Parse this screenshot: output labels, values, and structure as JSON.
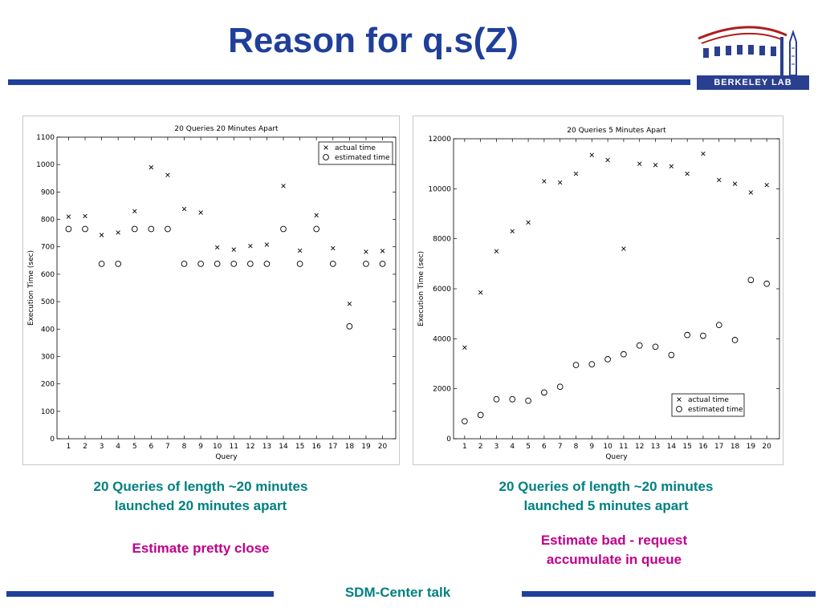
{
  "slide": {
    "title": "Reason for q.s(Z)",
    "footer": "SDM-Center talk",
    "logo_text": "BERKELEY LAB",
    "colors": {
      "title": "#1f3f9a",
      "rule": "#1f3f9a",
      "caption": "#008080",
      "note": "#c0008a"
    }
  },
  "captions": {
    "left_line1": "20 Queries of length ~20 minutes",
    "left_line2": "launched 20 minutes apart",
    "left_note": "Estimate pretty close",
    "right_line1": "20 Queries of length ~20 minutes",
    "right_line2": "launched 5 minutes apart",
    "right_note_line1": "Estimate bad - request",
    "right_note_line2": "accumulate in queue"
  },
  "chart_data": [
    {
      "type": "scatter",
      "title": "20 Queries 20 Minutes Apart",
      "xlabel": "Query",
      "ylabel": "Execution Time (sec)",
      "x": [
        1,
        2,
        3,
        4,
        5,
        6,
        7,
        8,
        9,
        10,
        11,
        12,
        13,
        14,
        15,
        16,
        17,
        18,
        19,
        20
      ],
      "xlim": [
        0.3,
        20.8
      ],
      "ylim": [
        0,
        1100
      ],
      "yticks": [
        0,
        100,
        200,
        300,
        400,
        500,
        600,
        700,
        800,
        900,
        1000,
        1100
      ],
      "grid": false,
      "legend_position": "top-right",
      "series": [
        {
          "name": "actual time",
          "marker": "x",
          "values": [
            810,
            812,
            743,
            752,
            830,
            990,
            962,
            838,
            825,
            698,
            690,
            703,
            708,
            922,
            686,
            815,
            695,
            492,
            682,
            685
          ]
        },
        {
          "name": "estimated time",
          "marker": "o",
          "values": [
            765,
            765,
            638,
            638,
            765,
            765,
            765,
            638,
            638,
            638,
            638,
            638,
            638,
            765,
            638,
            765,
            638,
            410,
            638,
            638
          ]
        }
      ]
    },
    {
      "type": "scatter",
      "title": "20 Queries 5 Minutes Apart",
      "xlabel": "Query",
      "ylabel": "Execution Time (sec)",
      "x": [
        1,
        2,
        3,
        4,
        5,
        6,
        7,
        8,
        9,
        10,
        11,
        12,
        13,
        14,
        15,
        16,
        17,
        18,
        19,
        20
      ],
      "xlim": [
        0.3,
        20.8
      ],
      "ylim": [
        0,
        12000
      ],
      "yticks": [
        0,
        2000,
        4000,
        6000,
        8000,
        10000,
        12000
      ],
      "grid": false,
      "legend_position": "bottom-right",
      "series": [
        {
          "name": "actual time",
          "marker": "x",
          "values": [
            3650,
            5850,
            7500,
            8300,
            8650,
            10300,
            10250,
            10600,
            11350,
            11150,
            7600,
            11000,
            10950,
            10900,
            10600,
            11400,
            10350,
            10200,
            9850,
            10150
          ]
        },
        {
          "name": "estimated time",
          "marker": "o",
          "values": [
            700,
            950,
            1580,
            1580,
            1520,
            1850,
            2080,
            2950,
            2980,
            3180,
            3380,
            3730,
            3680,
            3350,
            4150,
            4120,
            4550,
            3950,
            6350,
            6200
          ]
        }
      ]
    }
  ]
}
